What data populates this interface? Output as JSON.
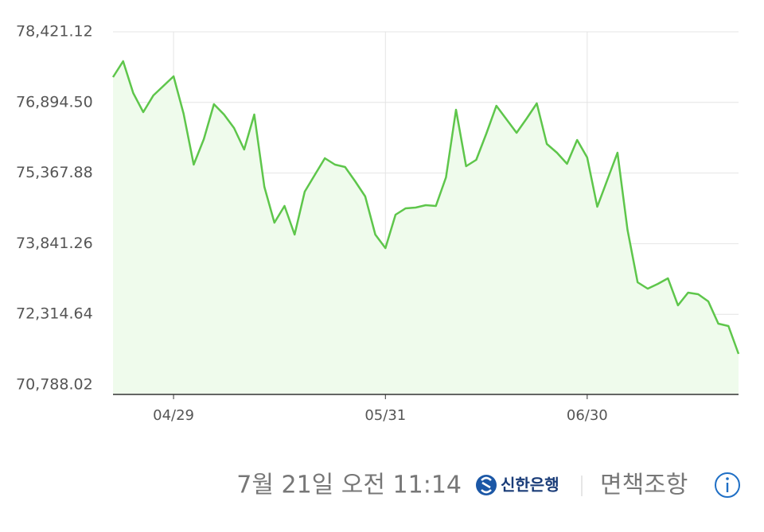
{
  "chart_data": {
    "type": "line",
    "categories": [
      null,
      null,
      null,
      null,
      null,
      null,
      "04/29",
      null,
      null,
      null,
      null,
      null,
      null,
      null,
      null,
      null,
      null,
      null,
      null,
      null,
      null,
      null,
      null,
      null,
      null,
      null,
      null,
      "05/31",
      null,
      null,
      null,
      null,
      null,
      null,
      null,
      null,
      null,
      null,
      null,
      null,
      null,
      null,
      null,
      null,
      null,
      null,
      null,
      "06/30",
      null,
      null,
      null,
      null,
      null,
      null,
      null,
      null,
      null,
      null,
      null,
      null,
      null,
      null,
      null
    ],
    "values": [
      77440.9,
      77784.7,
      77097.1,
      76684.5,
      77045.5,
      77251.8,
      77458.1,
      76650.1,
      75549.9,
      76100.0,
      76856.4,
      76632.9,
      76340.7,
      75876.5,
      76632.9,
      75068.6,
      74295.0,
      74656.0,
      74037.1,
      74965.4,
      75326.4,
      75687.4,
      75549.9,
      75498.3,
      75188.9,
      74862.3,
      74037.1,
      73744.9,
      74466.9,
      74604.4,
      74621.6,
      74673.2,
      74656.0,
      75274.9,
      76736.1,
      75515.5,
      75653.1,
      76220.4,
      76822.0,
      76529.8,
      76237.5,
      76547.0,
      76873.6,
      75996.9,
      75807.8,
      75567.1,
      76082.8,
      75704.6,
      74638.8,
      75223.3,
      75807.8,
      74140.2,
      73005.6,
      72868.1,
      72971.3,
      73091.6,
      72507.1,
      72782.2,
      72747.8,
      72593.1,
      72111.7,
      72060.1,
      71458.4
    ],
    "color": "#5ec64b",
    "area_color": "#effbec",
    "ylim": [
      70581.7,
      78421.12
    ],
    "yticks": [
      {
        "value": 70788.02,
        "label": "70,788.02"
      },
      {
        "value": 72314.64,
        "label": "72,314.64"
      },
      {
        "value": 73841.26,
        "label": "73,841.26"
      },
      {
        "value": 75367.88,
        "label": "75,367.88"
      },
      {
        "value": 76894.5,
        "label": "76,894.50"
      },
      {
        "value": 78421.12,
        "label": "78,421.12"
      }
    ],
    "grid": true
  },
  "footer": {
    "timestamp": "7월 21일 오전 11:14",
    "source": "신한은행",
    "disclaimer": "면책조항"
  }
}
